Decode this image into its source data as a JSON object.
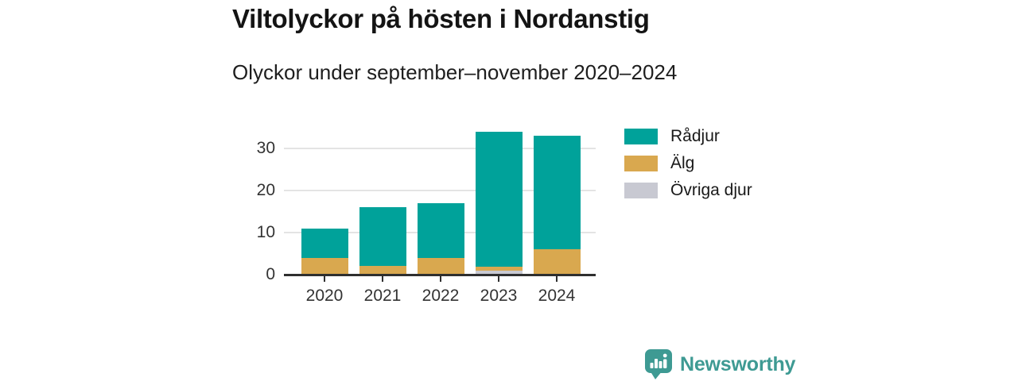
{
  "header": {
    "title": "Viltolyckor på hösten i Nordanstig",
    "subtitle": "Olyckor under september–november 2020–2024"
  },
  "chart_data": {
    "type": "bar",
    "stacked": true,
    "title": "Viltolyckor på hösten i Nordanstig",
    "subtitle": "Olyckor under september–november 2020–2024",
    "categories": [
      "2020",
      "2021",
      "2022",
      "2023",
      "2024"
    ],
    "series": [
      {
        "name": "Rådjur",
        "color": "#00a29a",
        "values": [
          7,
          14,
          13,
          32,
          27
        ]
      },
      {
        "name": "Älg",
        "color": "#d9a84f",
        "values": [
          4,
          2,
          4,
          1,
          6
        ]
      },
      {
        "name": "Övriga djur",
        "color": "#c8c9d2",
        "values": [
          0,
          0,
          0,
          1,
          0
        ]
      }
    ],
    "stack_order_bottom_to_top": [
      "Övriga djur",
      "Älg",
      "Rådjur"
    ],
    "totals": [
      11,
      16,
      17,
      34,
      33
    ],
    "xlabel": "",
    "ylabel": "",
    "y_ticks": [
      0,
      10,
      20,
      30
    ],
    "ylim": [
      0,
      35
    ],
    "grid": "horizontal",
    "legend_position": "right"
  },
  "colors": {
    "axis": "#2f2f2f",
    "grid": "#e4e4e4",
    "tick_text": "#333333",
    "brand_teal": "#3e9a93"
  },
  "footer": {
    "brand": "Newsworthy"
  }
}
